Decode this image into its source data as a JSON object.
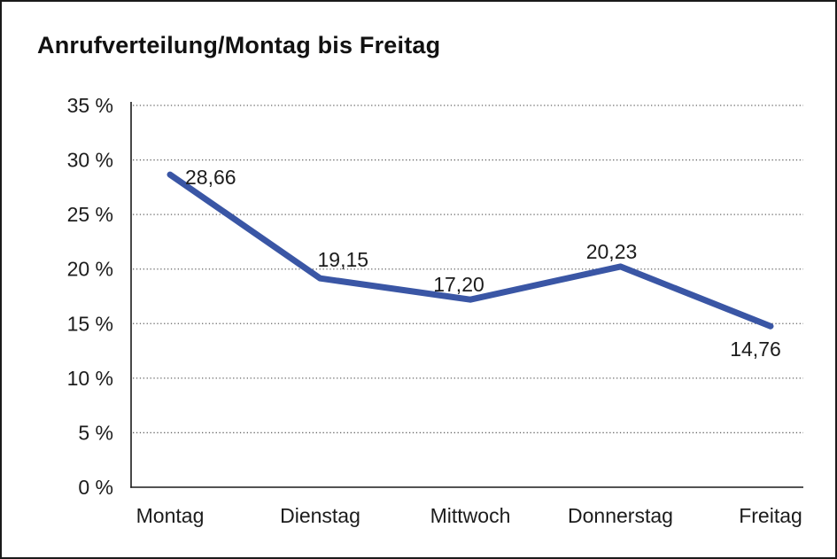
{
  "title": "Anrufverteilung/Montag bis Freitag",
  "chart_data": {
    "type": "line",
    "title": "Anrufverteilung/Montag bis Freitag",
    "categories": [
      "Montag",
      "Dienstag",
      "Mittwoch",
      "Donnerstag",
      "Freitag"
    ],
    "values": [
      28.66,
      19.15,
      17.2,
      20.23,
      14.76
    ],
    "point_labels": [
      "28,66",
      "19,15",
      "17,20",
      "20,23",
      "14,76"
    ],
    "xlabel": "",
    "ylabel": "",
    "ylim": [
      0,
      35
    ],
    "ytick_step": 5,
    "ytick_suffix": " %",
    "ytick_labels": [
      "0 %",
      "5 %",
      "10 %",
      "15 %",
      "20 %",
      "25 %",
      "30 %",
      "35 %"
    ],
    "grid": "horizontal-dotted",
    "legend_position": "none",
    "line_color": "#3A56A5",
    "axis_color": "#1a1a1a",
    "gridline_color": "#666666",
    "label_color": "#1c1c1c"
  }
}
